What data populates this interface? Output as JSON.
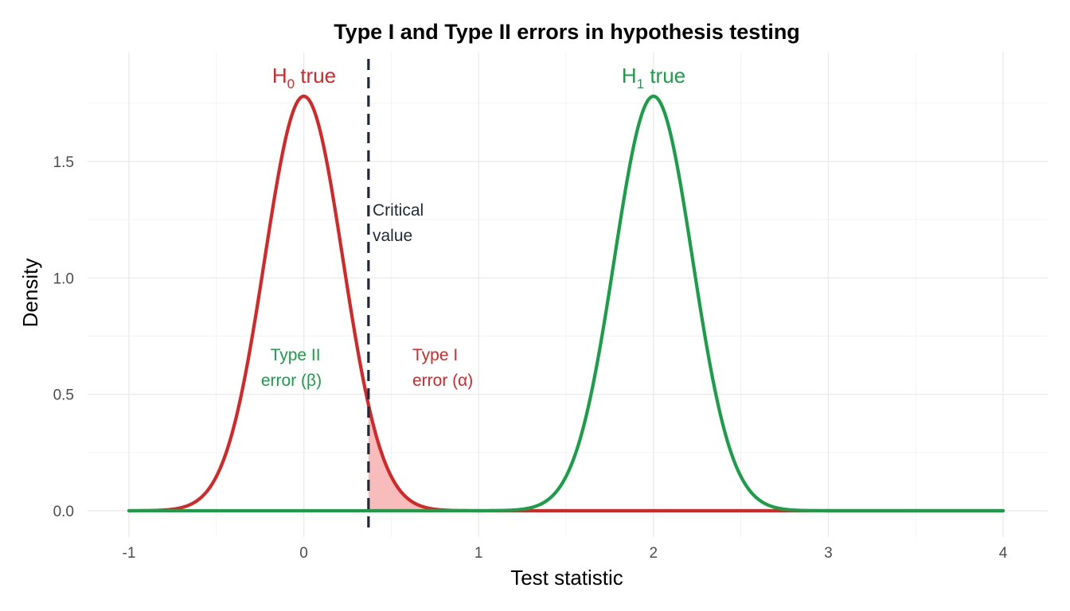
{
  "chart_data": {
    "type": "line",
    "title": "Type I and Type II errors in hypothesis testing",
    "xlabel": "Test statistic",
    "ylabel": "Density",
    "xlim": [
      -1,
      4
    ],
    "ylim": [
      0,
      1.78
    ],
    "x_ticks": [
      "-1",
      "0",
      "1",
      "2",
      "3",
      "4"
    ],
    "y_ticks": [
      "0.0",
      "0.5",
      "1.0",
      "1.5"
    ],
    "grid": true,
    "series": [
      {
        "mean": 0,
        "sd": 0.224,
        "color": "#d62728"
      },
      {
        "mean": 2,
        "sd": 0.224,
        "color": "#1a9e47"
      }
    ],
    "critical_value": 0.37,
    "shaded_region": {
      "from": 0.37,
      "to": 0.85,
      "fill": "#f8bcbc"
    },
    "annotations": {
      "h0_label": {
        "base": "H",
        "sub": "0",
        "rest": " true",
        "color": "#d62728"
      },
      "h1_label": {
        "base": "H",
        "sub": "1",
        "rest": " true",
        "color": "#1a9e47"
      },
      "critical_label": {
        "lines": [
          "Critical",
          "value"
        ],
        "color": "#1f2937"
      },
      "type2_label": {
        "lines": [
          "Type II",
          "error (β)"
        ],
        "color": "#1a9e47"
      },
      "type1_label": {
        "lines": [
          "Type I",
          "error (α)"
        ],
        "color": "#d62728"
      }
    }
  }
}
